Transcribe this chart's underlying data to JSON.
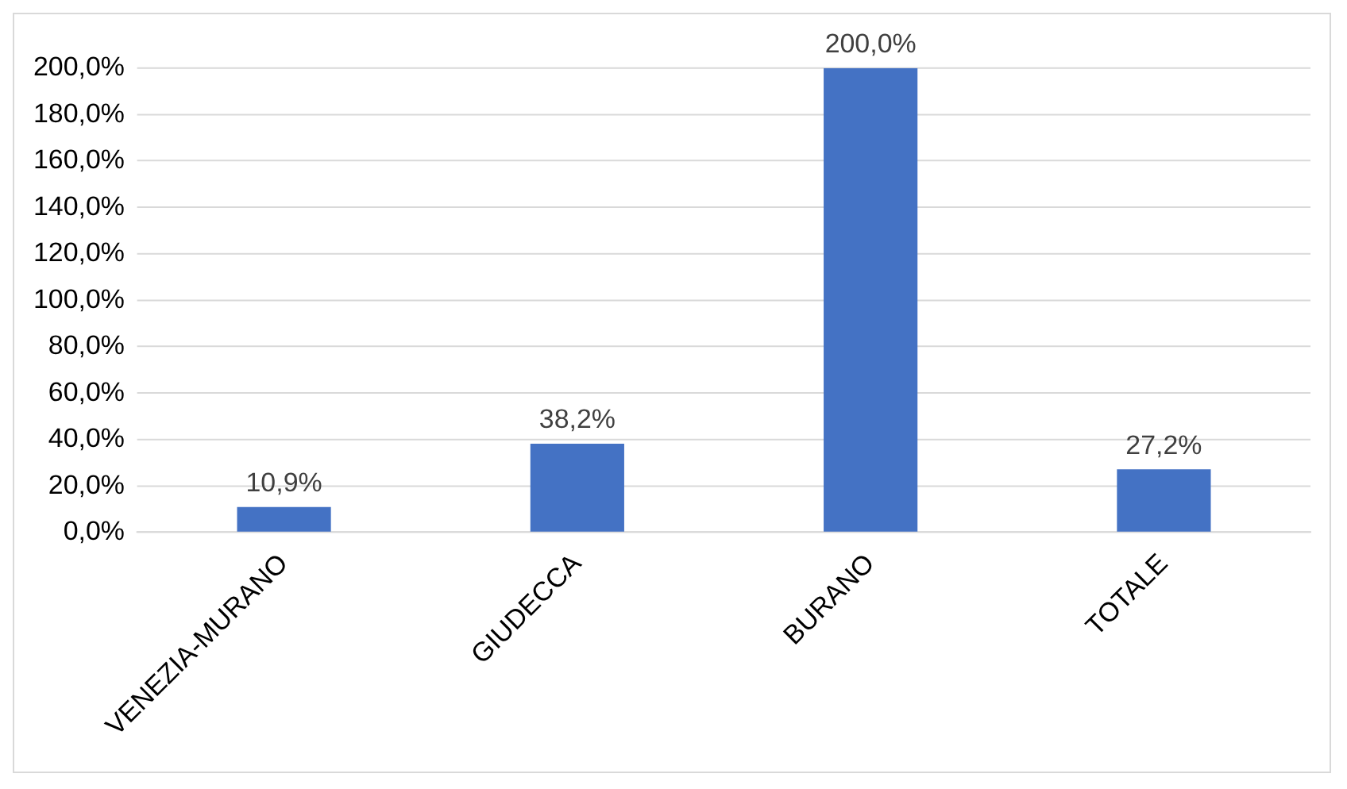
{
  "chart_data": {
    "type": "bar",
    "categories": [
      "VENEZIA-MURANO",
      "GIUDECCA",
      "BURANO",
      "TOTALE"
    ],
    "values": [
      10.9,
      38.2,
      200,
      27.2
    ],
    "value_labels": [
      "10,9%",
      "38,2%",
      "200,0%",
      "27,2%"
    ],
    "color": "#4472c4",
    "ylim": [
      0,
      200
    ],
    "yticks": [
      {
        "value": 0,
        "label": "0,0%"
      },
      {
        "value": 20,
        "label": "20,0%"
      },
      {
        "value": 40,
        "label": "40,0%"
      },
      {
        "value": 60,
        "label": "60,0%"
      },
      {
        "value": 80,
        "label": "80,0%"
      },
      {
        "value": 100,
        "label": "100,0%"
      },
      {
        "value": 120,
        "label": "120,0%"
      },
      {
        "value": 140,
        "label": "140,0%"
      },
      {
        "value": 160,
        "label": "160,0%"
      },
      {
        "value": 180,
        "label": "180,0%"
      },
      {
        "value": 200,
        "label": "200,0%"
      }
    ],
    "grid": "y"
  }
}
